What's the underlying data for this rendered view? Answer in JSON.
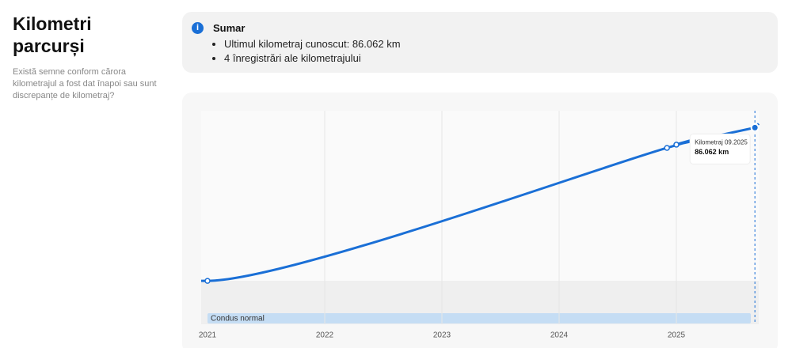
{
  "sidebar": {
    "title": "Kilometri parcurși",
    "description": "Există semne conform cărora kilometrajul a fost dat înapoi sau sunt discrepanțe de kilometraj?"
  },
  "summary": {
    "title": "Sumar",
    "items": [
      "Ultimul kilometraj cunoscut: 86.062 km",
      "4 înregistrări ale kilometrajului"
    ]
  },
  "chart_data": {
    "type": "line",
    "x": [
      2021,
      2024.92,
      2025,
      2025.67
    ],
    "series": [
      {
        "color": "#1a6fd6",
        "values": [
          19000,
          77200,
          78600,
          86062
        ]
      }
    ],
    "xlim": [
      2021,
      2025.75
    ],
    "xticks": [
      2021,
      2022,
      2023,
      2024,
      2025
    ],
    "ylim": [
      0,
      90000
    ],
    "grid": true,
    "band_label": "Condus normal",
    "tooltip": {
      "title": "Kilometraj 09.2025",
      "value": "86.062 km"
    }
  }
}
